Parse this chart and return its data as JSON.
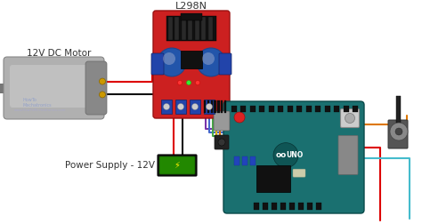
{
  "title": "L298N",
  "label_motor": "12V DC Motor",
  "label_power": "Power Supply - 12V",
  "bg_color": "#ffffff",
  "wire_red": "#dd0000",
  "wire_black": "#111111",
  "wire_blue": "#4466cc",
  "wire_green": "#44aa44",
  "wire_yellow": "#ddbb00",
  "wire_purple": "#7733aa",
  "wire_orange": "#dd7700",
  "wire_cyan": "#44bbcc",
  "motor_body": "#b0b0b0",
  "motor_end": "#888888",
  "motor_shaft": "#777777",
  "l298n_red": "#cc2020",
  "l298n_blue": "#2255aa",
  "arduino_teal": "#1a7070",
  "arduino_dark": "#0d5555",
  "power_green": "#228800",
  "power_black": "#111111",
  "button_gray": "#aaaaaa",
  "potentiometer_gray": "#555555",
  "text_color": "#333333",
  "watermark": "www.HowToMechatronics.com",
  "figsize": [
    4.74,
    2.52
  ],
  "dpi": 100
}
